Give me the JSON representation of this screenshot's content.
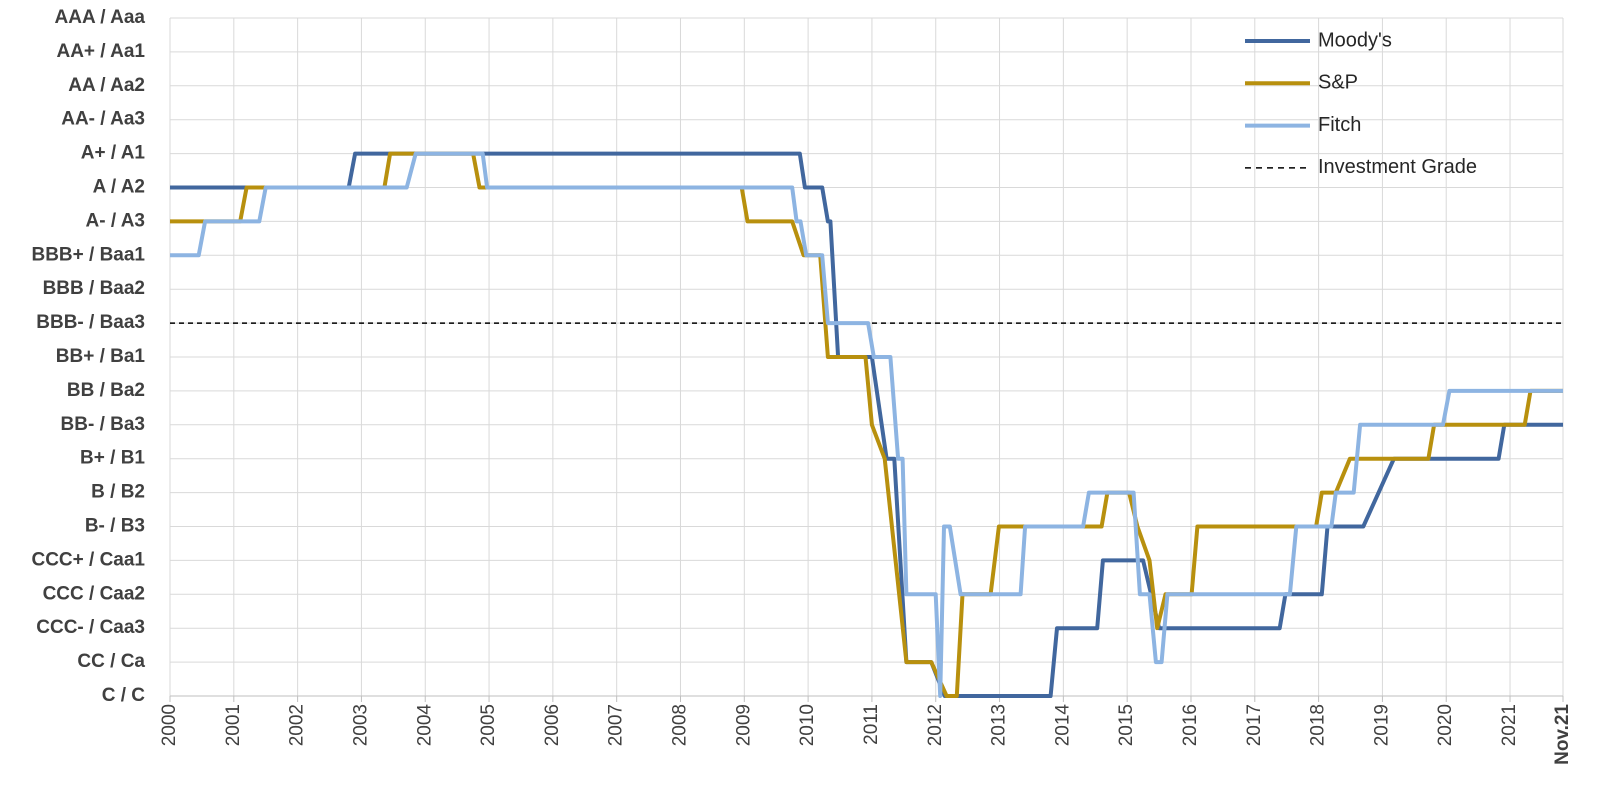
{
  "chart_data": {
    "type": "line",
    "xlim": [
      2000,
      2021.83
    ],
    "xticks": [
      2000,
      2001,
      2002,
      2003,
      2004,
      2005,
      2006,
      2007,
      2008,
      2009,
      2010,
      2011,
      2012,
      2013,
      2014,
      2015,
      2016,
      2017,
      2018,
      2019,
      2020,
      2021,
      {
        "value": 2021.83,
        "label": "Nov.21"
      }
    ],
    "ylim": [
      0,
      20
    ],
    "yticks": [
      {
        "value": 0,
        "label": "C / C"
      },
      {
        "value": 1,
        "label": "CC / Ca"
      },
      {
        "value": 2,
        "label": "CCC- / Caa3"
      },
      {
        "value": 3,
        "label": "CCC / Caa2"
      },
      {
        "value": 4,
        "label": "CCC+ / Caa1"
      },
      {
        "value": 5,
        "label": "B- / B3"
      },
      {
        "value": 6,
        "label": "B / B2"
      },
      {
        "value": 7,
        "label": "B+ / B1"
      },
      {
        "value": 8,
        "label": "BB- / Ba3"
      },
      {
        "value": 9,
        "label": "BB / Ba2"
      },
      {
        "value": 10,
        "label": "BB+ / Ba1"
      },
      {
        "value": 11,
        "label": "BBB- / Baa3"
      },
      {
        "value": 12,
        "label": "BBB / Baa2"
      },
      {
        "value": 13,
        "label": "BBB+ / Baa1"
      },
      {
        "value": 14,
        "label": "A- / A3"
      },
      {
        "value": 15,
        "label": "A / A2"
      },
      {
        "value": 16,
        "label": "A+ / A1"
      },
      {
        "value": 17,
        "label": "AA- / Aa3"
      },
      {
        "value": 18,
        "label": "AA / Aa2"
      },
      {
        "value": 19,
        "label": "AA+ / Aa1"
      },
      {
        "value": 20,
        "label": "AAA / Aaa"
      }
    ],
    "grid": true,
    "legend": "top-right",
    "series": [
      {
        "name": "Moody's",
        "color": "#41679e",
        "x": [
          2000,
          2002.8,
          2002.9,
          2009.87,
          2009.95,
          2010.22,
          2010.31,
          2010.35,
          2010.47,
          2011.0,
          2011.23,
          2011.35,
          2011.54,
          2011.93,
          2012.14,
          2013.8,
          2013.9,
          2014.53,
          2014.62,
          2015.25,
          2015.5,
          2017.39,
          2017.48,
          2018.05,
          2018.14,
          2018.7,
          2019.18,
          2020.82,
          2020.91,
          2021.83
        ],
        "values": [
          15,
          15,
          16,
          16,
          15,
          15,
          14,
          14,
          10,
          10,
          7,
          7,
          1,
          1,
          0,
          0,
          2,
          2,
          4,
          4,
          2,
          2,
          3,
          3,
          5,
          5,
          7,
          7,
          8,
          8
        ]
      },
      {
        "name": "S&P",
        "color": "#b8900e",
        "x": [
          2000,
          2001.1,
          2001.2,
          2003.36,
          2003.45,
          2004.75,
          2004.85,
          2008.96,
          2009.05,
          2009.75,
          2009.93,
          2010.19,
          2010.31,
          2010.9,
          2011.0,
          2011.2,
          2011.54,
          2011.93,
          2012.17,
          2012.33,
          2012.42,
          2012.86,
          2012.99,
          2014.6,
          2014.69,
          2015.03,
          2015.16,
          2015.35,
          2015.47,
          2015.6,
          2016.01,
          2016.1,
          2017.96,
          2018.05,
          2018.27,
          2018.49,
          2019.72,
          2019.81,
          2021.23,
          2021.32,
          2021.83
        ],
        "values": [
          14,
          14,
          15,
          15,
          16,
          16,
          15,
          15,
          14,
          14,
          13,
          13,
          10,
          10,
          8,
          7,
          1,
          1,
          0,
          0,
          3,
          3,
          5,
          5,
          6,
          6,
          5,
          4,
          2,
          3,
          3,
          5,
          5,
          6,
          6,
          7,
          7,
          8,
          8,
          9,
          9
        ]
      },
      {
        "name": "Fitch",
        "color": "#8db4e2",
        "x": [
          2000,
          2000.45,
          2000.55,
          2001.4,
          2001.5,
          2003.71,
          2003.85,
          2004.9,
          2004.97,
          2009.75,
          2009.82,
          2009.88,
          2009.97,
          2010.22,
          2010.31,
          2010.94,
          2011.03,
          2011.29,
          2011.41,
          2011.48,
          2011.54,
          2012.0,
          2012.07,
          2012.13,
          2012.22,
          2012.39,
          2013.33,
          2013.4,
          2014.31,
          2014.4,
          2015.1,
          2015.2,
          2015.35,
          2015.45,
          2015.54,
          2015.63,
          2017.55,
          2017.65,
          2018.2,
          2018.27,
          2018.55,
          2018.65,
          2019.95,
          2020.05,
          2021.83
        ],
        "values": [
          13,
          13,
          14,
          14,
          15,
          15,
          16,
          16,
          15,
          15,
          14,
          14,
          13,
          13,
          11,
          11,
          10,
          10,
          7,
          7,
          3,
          3,
          0,
          5,
          5,
          3,
          3,
          5,
          5,
          6,
          6,
          3,
          3,
          1,
          1,
          3,
          3,
          5,
          5,
          6,
          6,
          8,
          8,
          9,
          9
        ]
      }
    ],
    "reference_lines": [
      {
        "name": "Investment Grade",
        "value": 11,
        "color": "#000000",
        "dashed": true
      }
    ]
  }
}
